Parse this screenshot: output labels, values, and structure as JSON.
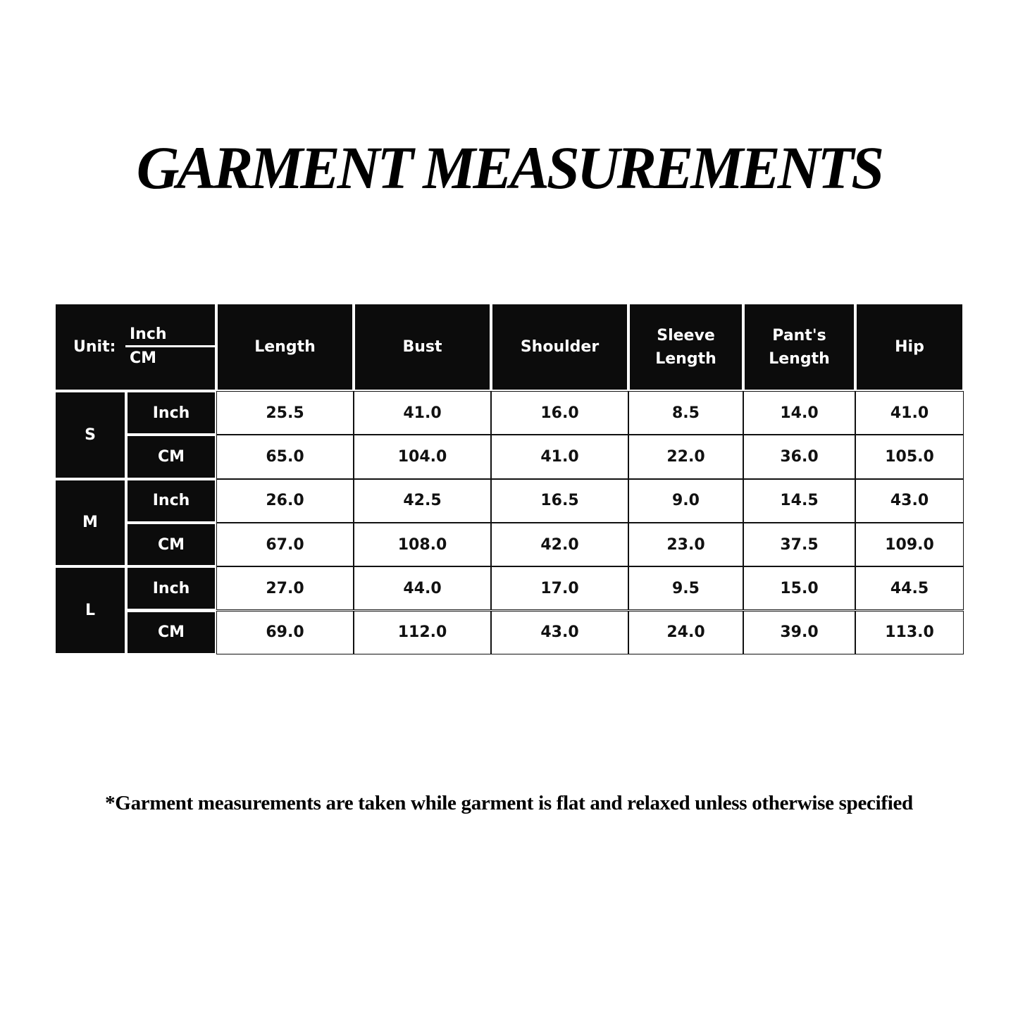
{
  "title": "GARMENT MEASUREMENTS",
  "table": {
    "unit_label": "Unit:",
    "unit_top": "Inch",
    "unit_bottom": "CM",
    "columns": [
      "Length",
      "Bust",
      "Shoulder",
      "Sleeve\nLength",
      "Pant's\nLength",
      "Hip"
    ],
    "sizes": [
      {
        "size": "S",
        "rows": [
          {
            "unit": "Inch",
            "values": [
              "25.5",
              "41.0",
              "16.0",
              "8.5",
              "14.0",
              "41.0"
            ]
          },
          {
            "unit": "CM",
            "values": [
              "65.0",
              "104.0",
              "41.0",
              "22.0",
              "36.0",
              "105.0"
            ]
          }
        ]
      },
      {
        "size": "M",
        "rows": [
          {
            "unit": "Inch",
            "values": [
              "26.0",
              "42.5",
              "16.5",
              "9.0",
              "14.5",
              "43.0"
            ]
          },
          {
            "unit": "CM",
            "values": [
              "67.0",
              "108.0",
              "42.0",
              "23.0",
              "37.5",
              "109.0"
            ]
          }
        ]
      },
      {
        "size": "L",
        "rows": [
          {
            "unit": "Inch",
            "values": [
              "27.0",
              "44.0",
              "17.0",
              "9.5",
              "15.0",
              "44.5"
            ]
          },
          {
            "unit": "CM",
            "values": [
              "69.0",
              "112.0",
              "43.0",
              "24.0",
              "39.0",
              "113.0"
            ]
          }
        ]
      }
    ]
  },
  "footnote": "*Garment measurements are taken while garment is flat and relaxed unless otherwise specified"
}
